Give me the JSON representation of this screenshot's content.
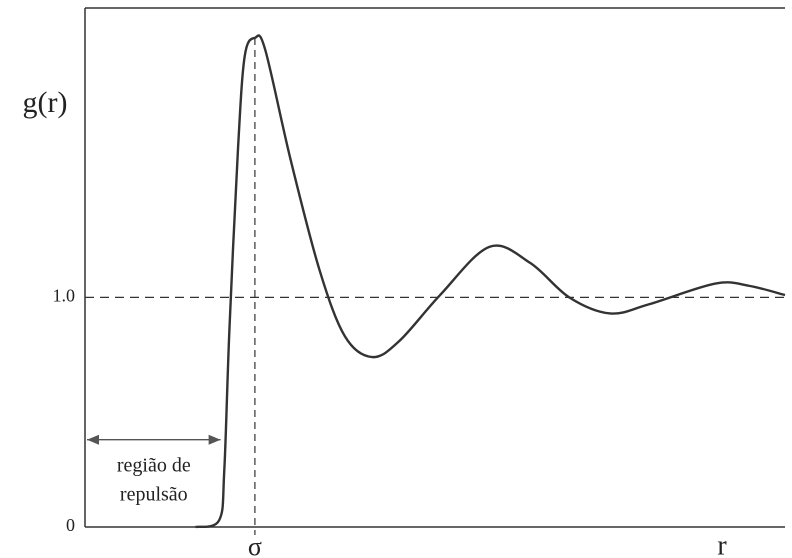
{
  "chart_data": {
    "type": "line",
    "y_label": "g(r)",
    "x_label": "r",
    "xlim": [
      0,
      4.12
    ],
    "ylim": [
      0,
      2.26
    ],
    "xticks": [
      {
        "value": 1,
        "label": "σ"
      }
    ],
    "yticks": [
      0,
      {
        "value": 1,
        "label": "1.0"
      }
    ],
    "grid": "dashed",
    "series": [
      {
        "name": "g(r)",
        "color": "#333333",
        "x": [
          0.65,
          0.79,
          0.82,
          0.85,
          0.9,
          0.94,
          1.0,
          1.06,
          1.21,
          1.38,
          1.53,
          1.69,
          1.85,
          2.09,
          2.38,
          2.62,
          2.85,
          3.09,
          3.32,
          3.71,
          3.91,
          4.12
        ],
        "values": [
          0,
          0.03,
          0.25,
          0.86,
          1.64,
          2.05,
          2.13,
          2.08,
          1.6,
          1.12,
          0.83,
          0.74,
          0.81,
          1.01,
          1.22,
          1.15,
          1.0,
          0.93,
          0.97,
          1.06,
          1.05,
          1.01
        ]
      }
    ],
    "annotation": {
      "text": [
        "região de",
        "repulsão"
      ],
      "x_range": [
        0,
        0.81
      ],
      "y": 0.38
    }
  }
}
